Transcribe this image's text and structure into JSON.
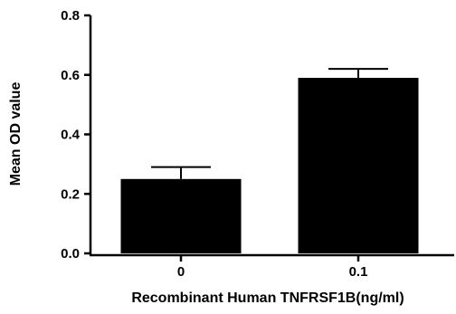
{
  "chart_data": {
    "type": "bar",
    "title": "",
    "xlabel": "Recombinant Human TNFRSF1B(ng/ml)",
    "ylabel": "Mean OD value",
    "categories": [
      "0",
      "0.1"
    ],
    "values": [
      0.25,
      0.59
    ],
    "error_upper": [
      0.29,
      0.62
    ],
    "ylim": [
      0.0,
      0.8
    ],
    "yticks": [
      "0.0",
      "0.2",
      "0.4",
      "0.6",
      "0.8"
    ],
    "grid": false,
    "legend": "none",
    "bar_color": "#000000"
  }
}
